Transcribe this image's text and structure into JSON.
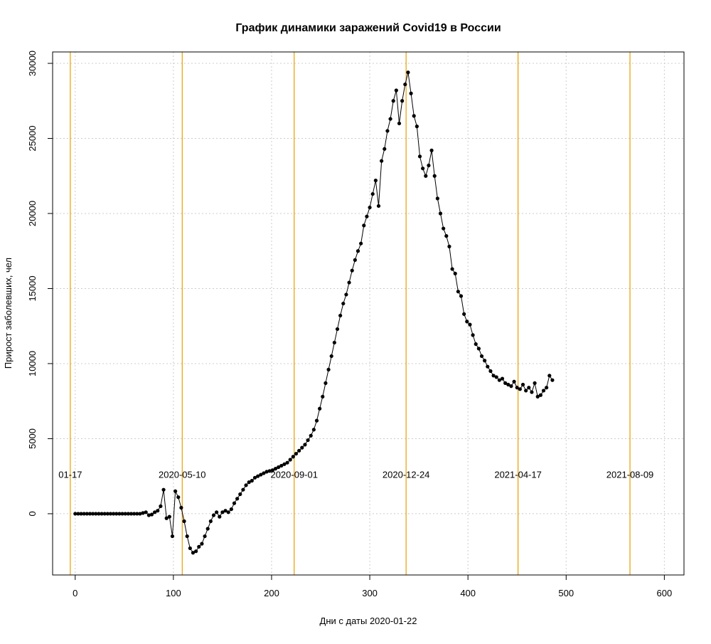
{
  "chart_data": {
    "type": "line",
    "title": "График динамики заражений Covid19 в России",
    "xlabel": "Дни с даты 2020-01-22",
    "ylabel": "Прирост заболевших, чел",
    "x": [
      0,
      3,
      6,
      9,
      12,
      15,
      18,
      21,
      24,
      27,
      30,
      33,
      36,
      39,
      42,
      45,
      48,
      51,
      54,
      57,
      60,
      63,
      66,
      69,
      72,
      75,
      78,
      81,
      84,
      87,
      90,
      93,
      96,
      99,
      102,
      105,
      108,
      111,
      114,
      117,
      120,
      123,
      126,
      129,
      132,
      135,
      138,
      141,
      144,
      147,
      150,
      153,
      156,
      159,
      162,
      165,
      168,
      171,
      174,
      177,
      180,
      183,
      186,
      189,
      192,
      195,
      198,
      201,
      204,
      207,
      210,
      213,
      216,
      219,
      222,
      225,
      228,
      231,
      234,
      237,
      240,
      243,
      246,
      249,
      252,
      255,
      258,
      261,
      264,
      267,
      270,
      273,
      276,
      279,
      282,
      285,
      288,
      291,
      294,
      297,
      300,
      303,
      306,
      309,
      312,
      315,
      318,
      321,
      324,
      327,
      330,
      333,
      336,
      339,
      342,
      345,
      348,
      351,
      354,
      357,
      360,
      363,
      366,
      369,
      372,
      375,
      378,
      381,
      384,
      387,
      390,
      393,
      396,
      399,
      402,
      405,
      408,
      411,
      414,
      417,
      420,
      423,
      426,
      429,
      432,
      435,
      438,
      441,
      444,
      447,
      450,
      453,
      456,
      459,
      462,
      465,
      468,
      471,
      474,
      477,
      480,
      483,
      486
    ],
    "values": [
      0,
      0,
      0,
      0,
      0,
      0,
      0,
      0,
      0,
      0,
      0,
      0,
      0,
      0,
      0,
      0,
      0,
      0,
      0,
      0,
      0,
      0,
      0,
      50,
      100,
      -100,
      -50,
      100,
      200,
      500,
      1600,
      -300,
      -200,
      -1500,
      1500,
      1100,
      400,
      -500,
      -1500,
      -2300,
      -2600,
      -2500,
      -2200,
      -2000,
      -1500,
      -1000,
      -500,
      -100,
      100,
      -200,
      100,
      200,
      100,
      300,
      700,
      1000,
      1300,
      1600,
      1900,
      2100,
      2200,
      2400,
      2500,
      2600,
      2700,
      2800,
      2850,
      2900,
      3000,
      3100,
      3200,
      3300,
      3400,
      3600,
      3800,
      4000,
      4200,
      4400,
      4600,
      4900,
      5200,
      5600,
      6200,
      7000,
      7800,
      8700,
      9600,
      10500,
      11400,
      12300,
      13200,
      14000,
      14600,
      15400,
      16200,
      16900,
      17500,
      18000,
      19200,
      19800,
      20400,
      21300,
      22200,
      20500,
      23500,
      24300,
      25500,
      26300,
      27500,
      28200,
      26000,
      27500,
      28600,
      29400,
      28000,
      26500,
      25800,
      23800,
      23000,
      22500,
      23200,
      24200,
      22500,
      21000,
      20000,
      19000,
      18500,
      17800,
      16300,
      16000,
      14800,
      14500,
      13300,
      12800,
      12600,
      11900,
      11300,
      11000,
      10500,
      10200,
      9800,
      9500,
      9200,
      9100,
      8900,
      9000,
      8700,
      8600,
      8500,
      8800,
      8400,
      8300,
      8600,
      8200,
      8400,
      8100,
      8700,
      7800,
      7900,
      8200,
      8400,
      9200,
      8900
    ],
    "color": "#000000",
    "vline_color": "#e69f00",
    "vlines": [
      {
        "x": -5,
        "label": "01-17"
      },
      {
        "x": 109,
        "label": "2020-05-10"
      },
      {
        "x": 223,
        "label": "2020-09-01"
      },
      {
        "x": 337,
        "label": "2020-12-24"
      },
      {
        "x": 451,
        "label": "2021-04-17"
      },
      {
        "x": 565,
        "label": "2021-08-09"
      }
    ],
    "xlim": [
      -23,
      620
    ],
    "ylim": [
      -4080,
      30760
    ],
    "xticks": [
      0,
      100,
      200,
      300,
      400,
      500,
      600
    ],
    "yticks": [
      0,
      5000,
      10000,
      15000,
      20000,
      25000,
      30000
    ],
    "grid": true
  }
}
